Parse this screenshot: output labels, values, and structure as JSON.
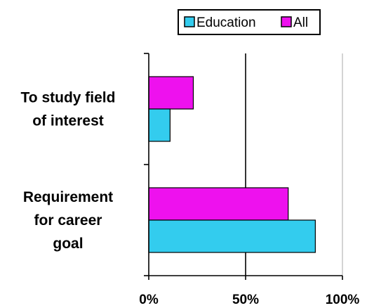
{
  "chart_data": {
    "type": "bar",
    "orientation": "horizontal",
    "categories": [
      "To study field of interest",
      "Requirement for career goal"
    ],
    "category_lines": [
      [
        "To study field",
        "of interest"
      ],
      [
        "Requirement",
        "for career",
        "goal"
      ]
    ],
    "series": [
      {
        "name": "Education",
        "values": [
          11,
          86
        ],
        "color": "#33ccee"
      },
      {
        "name": "All",
        "values": [
          23,
          72
        ],
        "color": "#ee11ee"
      }
    ],
    "xlim": [
      0,
      100
    ],
    "xticks": [
      {
        "value": 0,
        "label": "0%"
      },
      {
        "value": 50,
        "label": "50%"
      },
      {
        "value": 100,
        "label": "100%"
      }
    ],
    "gridlines": [
      50,
      100
    ],
    "legend": {
      "placement": "top-center",
      "entries": [
        {
          "label": "Education",
          "color": "#33ccee"
        },
        {
          "label": "All",
          "color": "#ee11ee"
        }
      ]
    },
    "title": "",
    "xlabel": "",
    "ylabel": ""
  }
}
